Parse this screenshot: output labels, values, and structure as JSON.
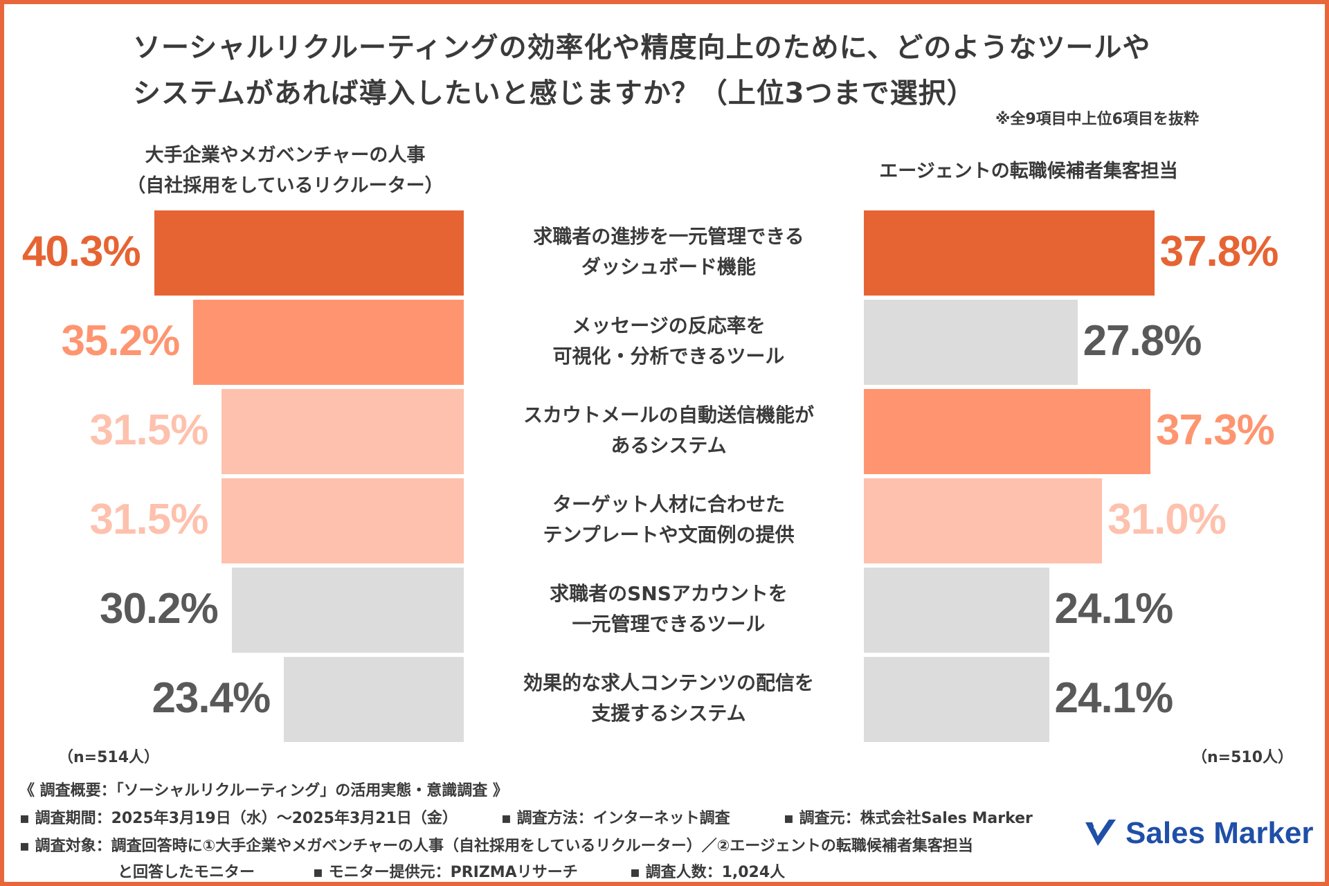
{
  "title": {
    "line1": "ソーシャルリクルーティングの効率化や精度向上のために、どのようなツールや",
    "line2": "システムがあれば導入したいと感じますか？（上位3つまで選択）",
    "note": "※全9項目中上位6項目を抜粋"
  },
  "groups": {
    "left": {
      "label_line1": "大手企業やメガベンチャーの人事",
      "label_line2": "（自社採用をしているリクルーター）",
      "n": "（n=514人）"
    },
    "right": {
      "label": "エージェントの転職候補者集客担当",
      "n": "（n=510人）"
    }
  },
  "colors": {
    "rank1": "#e66433",
    "rank2": "#fe9570",
    "rank3": "#fec1ad",
    "other": "#dcdcdc",
    "other_text": "#595959",
    "border": "#e8673a",
    "logo": "#1f4fa8"
  },
  "chart_data": {
    "type": "bar",
    "orientation": "horizontal-butterfly",
    "title": "ソーシャルリクルーティングの効率化や精度向上のために、どのようなツールやシステムがあれば導入したいと感じますか？（上位3つまで選択）",
    "categories": [
      [
        "求職者の進捗を一元管理できる",
        "ダッシュボード機能"
      ],
      [
        "メッセージの反応率を",
        "可視化・分析できるツール"
      ],
      [
        "スカウトメールの自動送信機能が",
        "あるシステム"
      ],
      [
        "ターゲット人材に合わせた",
        "テンプレートや文面例の提供"
      ],
      [
        "求職者のSNSアカウントを",
        "一元管理できるツール"
      ],
      [
        "効果的な求人コンテンツの配信を",
        "支援するシステム"
      ]
    ],
    "series": [
      {
        "name": "大手企業やメガベンチャーの人事（自社採用をしているリクルーター）",
        "values": [
          40.3,
          35.2,
          31.5,
          31.5,
          30.2,
          23.4
        ],
        "labels": [
          "40.3%",
          "35.2%",
          "31.5%",
          "31.5%",
          "30.2%",
          "23.4%"
        ],
        "ranks": [
          1,
          2,
          3,
          3,
          0,
          0
        ]
      },
      {
        "name": "エージェントの転職候補者集客担当",
        "values": [
          37.8,
          27.8,
          37.3,
          31.0,
          24.1,
          24.1
        ],
        "labels": [
          "37.8%",
          "27.8%",
          "37.3%",
          "31.0%",
          "24.1%",
          "24.1%"
        ],
        "ranks": [
          1,
          0,
          2,
          3,
          0,
          0
        ]
      }
    ],
    "xlim": [
      0,
      45
    ],
    "unit": "%"
  },
  "footer": {
    "overview": "《 調査概要：「ソーシャルリクルーティング」の活用実態・意識調査 》",
    "period": "▪ 調査期間：2025年3月19日（水）〜2025年3月21日（金）",
    "method": "▪ 調査方法：インターネット調査",
    "source": "▪ 調査元：株式会社Sales Marker",
    "target_line1": "▪ 調査対象：調査回答時に①大手企業やメガベンチャーの人事（自社採用をしているリクルーター）／②エージェントの転職候補者集客担当",
    "target_line2": "と回答したモニター",
    "provider": "▪ モニター提供元：PRIZMAリサーチ",
    "count": "▪ 調査人数：1,024人"
  },
  "logo": {
    "text": "Sales Marker",
    "icon": "check-mark-icon"
  }
}
